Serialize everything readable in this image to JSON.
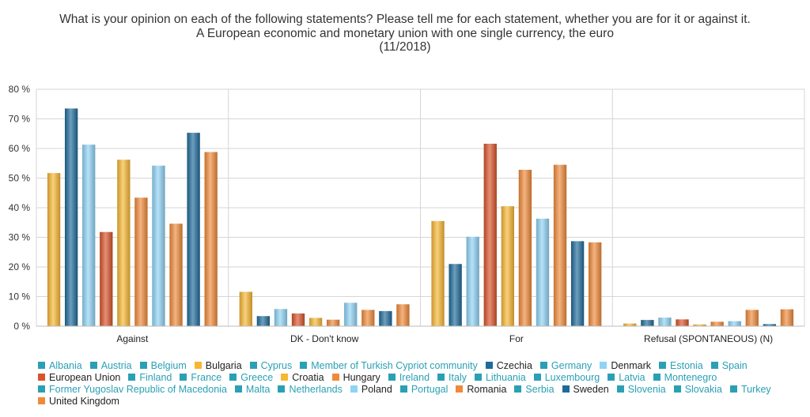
{
  "chart_data": {
    "type": "bar",
    "title": [
      "What is your opinion on each of the following statements? Please tell me for each statement, whether you are for it or against it.",
      "A European economic and monetary union with one single currency, the euro",
      "(11/2018)"
    ],
    "categories": [
      "Against",
      "DK - Don't know",
      "For",
      "Refusal (SPONTANEOUS) (N)"
    ],
    "ylim": [
      0,
      80
    ],
    "yticks": [
      "0 %",
      "10 %",
      "20 %",
      "30 %",
      "40 %",
      "50 %",
      "60 %",
      "70 %",
      "80 %"
    ],
    "grid": true,
    "legend_position": "bottom",
    "series": [
      {
        "name": "Bulgaria",
        "color": "#f7b733",
        "values": [
          51.7,
          11.6,
          35.5,
          0.9
        ]
      },
      {
        "name": "Czechia",
        "color": "#1f6a9a",
        "values": [
          73.5,
          3.4,
          21.0,
          2.1
        ]
      },
      {
        "name": "Denmark",
        "color": "#8fd3f5",
        "values": [
          61.3,
          5.8,
          30.2,
          2.9
        ]
      },
      {
        "name": "European Union",
        "color": "#d9532a",
        "values": [
          31.8,
          4.3,
          61.6,
          2.3
        ]
      },
      {
        "name": "Croatia",
        "color": "#f7b733",
        "values": [
          56.2,
          2.8,
          40.5,
          0.6
        ]
      },
      {
        "name": "Hungary",
        "color": "#f08a3a",
        "values": [
          43.4,
          2.2,
          52.8,
          1.5
        ]
      },
      {
        "name": "Poland",
        "color": "#8fd3f5",
        "values": [
          54.2,
          7.9,
          36.3,
          1.7
        ]
      },
      {
        "name": "Romania",
        "color": "#f08a3a",
        "values": [
          34.6,
          5.5,
          54.5,
          5.5
        ]
      },
      {
        "name": "Sweden",
        "color": "#1f6a9a",
        "values": [
          65.3,
          5.1,
          28.7,
          0.7
        ]
      },
      {
        "name": "United Kingdom",
        "color": "#f08a3a",
        "values": [
          58.8,
          7.4,
          28.3,
          5.7
        ]
      }
    ],
    "legend": [
      {
        "name": "Albania",
        "color": "#2aa0b5",
        "shown": false
      },
      {
        "name": "Austria",
        "color": "#2aa0b5",
        "shown": false
      },
      {
        "name": "Belgium",
        "color": "#2aa0b5",
        "shown": false
      },
      {
        "name": "Bulgaria",
        "color": "#f7b733",
        "shown": true
      },
      {
        "name": "Cyprus",
        "color": "#2aa0b5",
        "shown": false
      },
      {
        "name": "Member of Turkish Cypriot community",
        "color": "#2aa0b5",
        "shown": false
      },
      {
        "name": "Czechia",
        "color": "#1f6a9a",
        "shown": true
      },
      {
        "name": "Germany",
        "color": "#2aa0b5",
        "shown": false
      },
      {
        "name": "Denmark",
        "color": "#8fd3f5",
        "shown": true
      },
      {
        "name": "Estonia",
        "color": "#2aa0b5",
        "shown": false
      },
      {
        "name": "Spain",
        "color": "#2aa0b5",
        "shown": false
      },
      {
        "name": "European Union",
        "color": "#d9532a",
        "shown": true
      },
      {
        "name": "Finland",
        "color": "#2aa0b5",
        "shown": false
      },
      {
        "name": "France",
        "color": "#2aa0b5",
        "shown": false
      },
      {
        "name": "Greece",
        "color": "#2aa0b5",
        "shown": false
      },
      {
        "name": "Croatia",
        "color": "#f7b733",
        "shown": true
      },
      {
        "name": "Hungary",
        "color": "#f08a3a",
        "shown": true
      },
      {
        "name": "Ireland",
        "color": "#2aa0b5",
        "shown": false
      },
      {
        "name": "Italy",
        "color": "#2aa0b5",
        "shown": false
      },
      {
        "name": "Lithuania",
        "color": "#2aa0b5",
        "shown": false
      },
      {
        "name": "Luxembourg",
        "color": "#2aa0b5",
        "shown": false
      },
      {
        "name": "Latvia",
        "color": "#2aa0b5",
        "shown": false
      },
      {
        "name": "Montenegro",
        "color": "#2aa0b5",
        "shown": false
      },
      {
        "name": "Former Yugoslav Republic of Macedonia",
        "color": "#2aa0b5",
        "shown": false
      },
      {
        "name": "Malta",
        "color": "#2aa0b5",
        "shown": false
      },
      {
        "name": "Netherlands",
        "color": "#2aa0b5",
        "shown": false
      },
      {
        "name": "Poland",
        "color": "#8fd3f5",
        "shown": true
      },
      {
        "name": "Portugal",
        "color": "#2aa0b5",
        "shown": false
      },
      {
        "name": "Romania",
        "color": "#f08a3a",
        "shown": true
      },
      {
        "name": "Serbia",
        "color": "#2aa0b5",
        "shown": false
      },
      {
        "name": "Sweden",
        "color": "#1f6a9a",
        "shown": true
      },
      {
        "name": "Slovenia",
        "color": "#2aa0b5",
        "shown": false
      },
      {
        "name": "Slovakia",
        "color": "#2aa0b5",
        "shown": false
      },
      {
        "name": "Turkey",
        "color": "#2aa0b5",
        "shown": false
      },
      {
        "name": "United Kingdom",
        "color": "#f08a3a",
        "shown": true
      }
    ]
  }
}
